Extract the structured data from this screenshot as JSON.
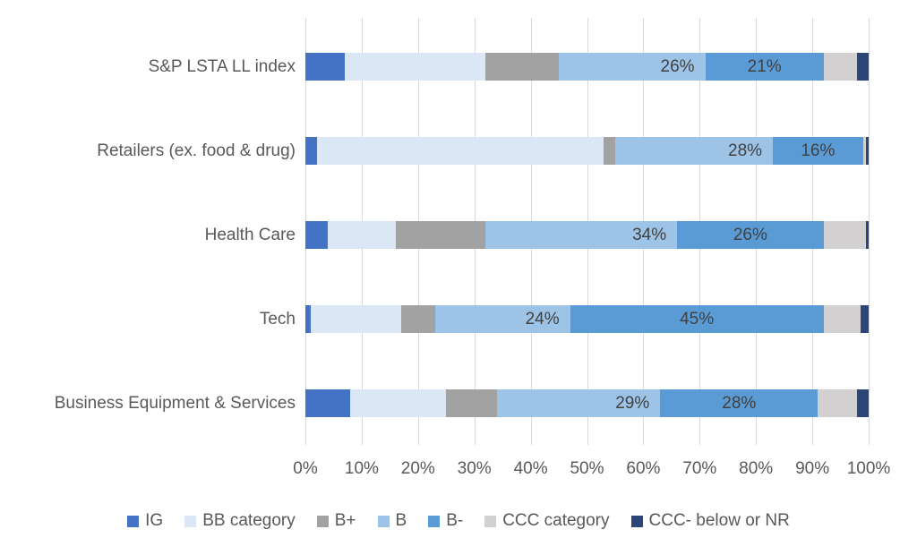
{
  "chart_data": {
    "type": "bar",
    "orientation": "horizontal-stacked",
    "title": "",
    "xlabel": "",
    "ylabel": "",
    "xlim": [
      0,
      100
    ],
    "grid": true,
    "legend_position": "bottom",
    "x_tick_labels": [
      "0%",
      "10%",
      "20%",
      "30%",
      "40%",
      "50%",
      "60%",
      "70%",
      "80%",
      "90%",
      "100%"
    ],
    "categories": [
      "S&P LSTA LL index",
      "Retailers (ex. food & drug)",
      "Health Care",
      "Tech",
      "Business Equipment & Services"
    ],
    "series": [
      {
        "id": "ig",
        "name": "IG",
        "color": "#4472C4",
        "values": [
          7,
          2,
          4,
          1,
          8
        ]
      },
      {
        "id": "bb",
        "name": "BB category",
        "color": "#DBE7F5",
        "values": [
          25,
          51,
          12,
          16,
          17
        ]
      },
      {
        "id": "bplus",
        "name": "B+",
        "color": "#A2A2A2",
        "pattern": "dotted",
        "values": [
          13,
          2,
          16,
          6,
          9
        ]
      },
      {
        "id": "b",
        "name": "B",
        "color": "#9DC3E6",
        "values": [
          26,
          28,
          34,
          24,
          29
        ],
        "show_labels": true,
        "label_align": "end"
      },
      {
        "id": "bminus",
        "name": "B-",
        "color": "#5B9BD5",
        "values": [
          21,
          16,
          26,
          45,
          28
        ],
        "show_labels": true,
        "label_align": "center"
      },
      {
        "id": "ccc",
        "name": "CCC category",
        "color": "#D2D0D0",
        "values": [
          6,
          0.6,
          7.5,
          6.5,
          7
        ]
      },
      {
        "id": "nr",
        "name": "CCC- below or NR",
        "color": "#2B4679",
        "values": [
          2,
          0.4,
          0.5,
          1.5,
          2
        ]
      }
    ],
    "data_labels_format": "{value}%",
    "colors": {
      "gridline": "#D9D9D9",
      "axis_text": "#595959",
      "data_label_text": "#404040",
      "background": "#FFFFFF"
    }
  }
}
